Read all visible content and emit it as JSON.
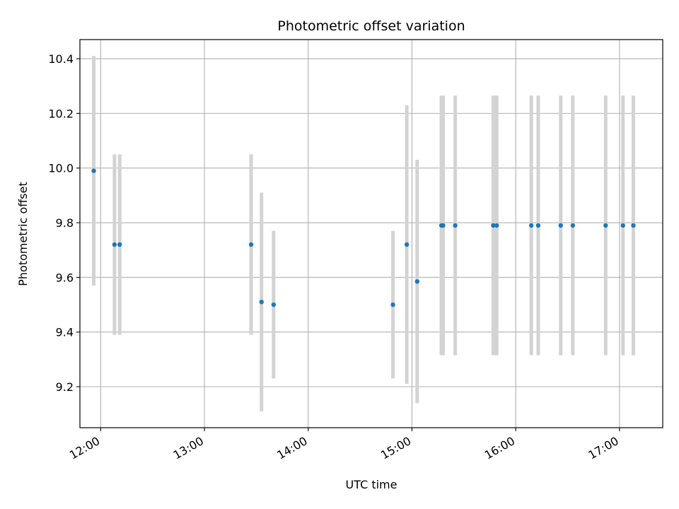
{
  "chart_data": {
    "type": "scatter",
    "title": "Photometric offset variation",
    "xlabel": "UTC time",
    "ylabel": "Photometric offset",
    "x_axis": {
      "kind": "time",
      "range": [
        "11:48",
        "17:25"
      ],
      "ticks": [
        "12:00",
        "13:00",
        "14:00",
        "15:00",
        "16:00",
        "17:00"
      ]
    },
    "y_axis": {
      "range": [
        9.05,
        10.47
      ],
      "ticks": [
        "9.2",
        "9.4",
        "9.6",
        "9.8",
        "10.0",
        "10.2",
        "10.4"
      ]
    },
    "grid": true,
    "colors": {
      "marker": "#1f77b4",
      "errorbar": "#d3d3d3",
      "grid": "#b0b0b0"
    },
    "points": [
      {
        "x": "11:56",
        "y": 9.99,
        "err": 0.42
      },
      {
        "x": "12:08",
        "y": 9.72,
        "err": 0.33
      },
      {
        "x": "12:11",
        "y": 9.72,
        "err": 0.33
      },
      {
        "x": "13:27",
        "y": 9.72,
        "err": 0.33
      },
      {
        "x": "13:33",
        "y": 9.51,
        "err": 0.4
      },
      {
        "x": "13:40",
        "y": 9.5,
        "err": 0.27
      },
      {
        "x": "14:49",
        "y": 9.5,
        "err": 0.27
      },
      {
        "x": "14:57",
        "y": 9.72,
        "err": 0.51
      },
      {
        "x": "15:03",
        "y": 9.585,
        "err": 0.445
      },
      {
        "x": "15:17",
        "y": 9.79,
        "err": 0.475
      },
      {
        "x": "15:18",
        "y": 9.79,
        "err": 0.475
      },
      {
        "x": "15:25",
        "y": 9.79,
        "err": 0.475
      },
      {
        "x": "15:47",
        "y": 9.79,
        "err": 0.475
      },
      {
        "x": "15:49",
        "y": 9.79,
        "err": 0.475
      },
      {
        "x": "16:09",
        "y": 9.79,
        "err": 0.475
      },
      {
        "x": "16:13",
        "y": 9.79,
        "err": 0.475
      },
      {
        "x": "16:26",
        "y": 9.79,
        "err": 0.475
      },
      {
        "x": "16:33",
        "y": 9.79,
        "err": 0.475
      },
      {
        "x": "16:52",
        "y": 9.79,
        "err": 0.475
      },
      {
        "x": "17:02",
        "y": 9.79,
        "err": 0.475
      },
      {
        "x": "17:08",
        "y": 9.79,
        "err": 0.475
      }
    ]
  }
}
